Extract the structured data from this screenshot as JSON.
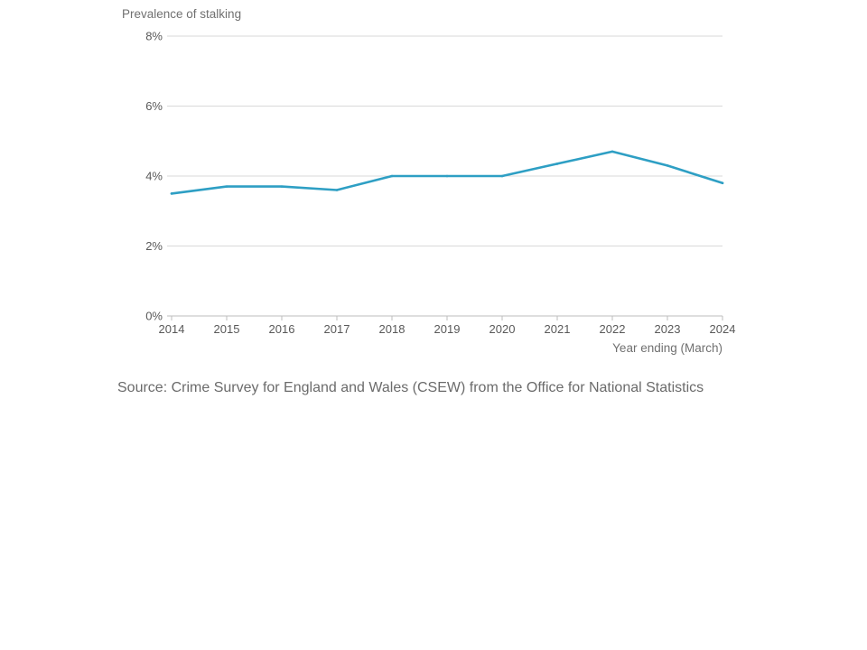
{
  "chart_data": {
    "type": "line",
    "ylabel": "Prevalence of stalking",
    "xlabel": "Year ending (March)",
    "x": [
      "2014",
      "2015",
      "2016",
      "2017",
      "2018",
      "2019",
      "2020",
      "2021",
      "2022",
      "2023",
      "2024"
    ],
    "series": [
      {
        "values": [
          3.5,
          3.7,
          3.7,
          3.6,
          4.0,
          4.0,
          4.0,
          4.35,
          4.7,
          4.3,
          3.8
        ],
        "color": "#2e9fc4"
      }
    ],
    "ylim": [
      0,
      8
    ],
    "yticks": [
      0,
      2,
      4,
      6,
      8
    ],
    "ytick_labels": [
      "0%",
      "2%",
      "4%",
      "6%",
      "8%"
    ],
    "grid": true,
    "legend": "none"
  },
  "source": "Source: Crime Survey for England and Wales (CSEW) from the Office for National Statistics"
}
